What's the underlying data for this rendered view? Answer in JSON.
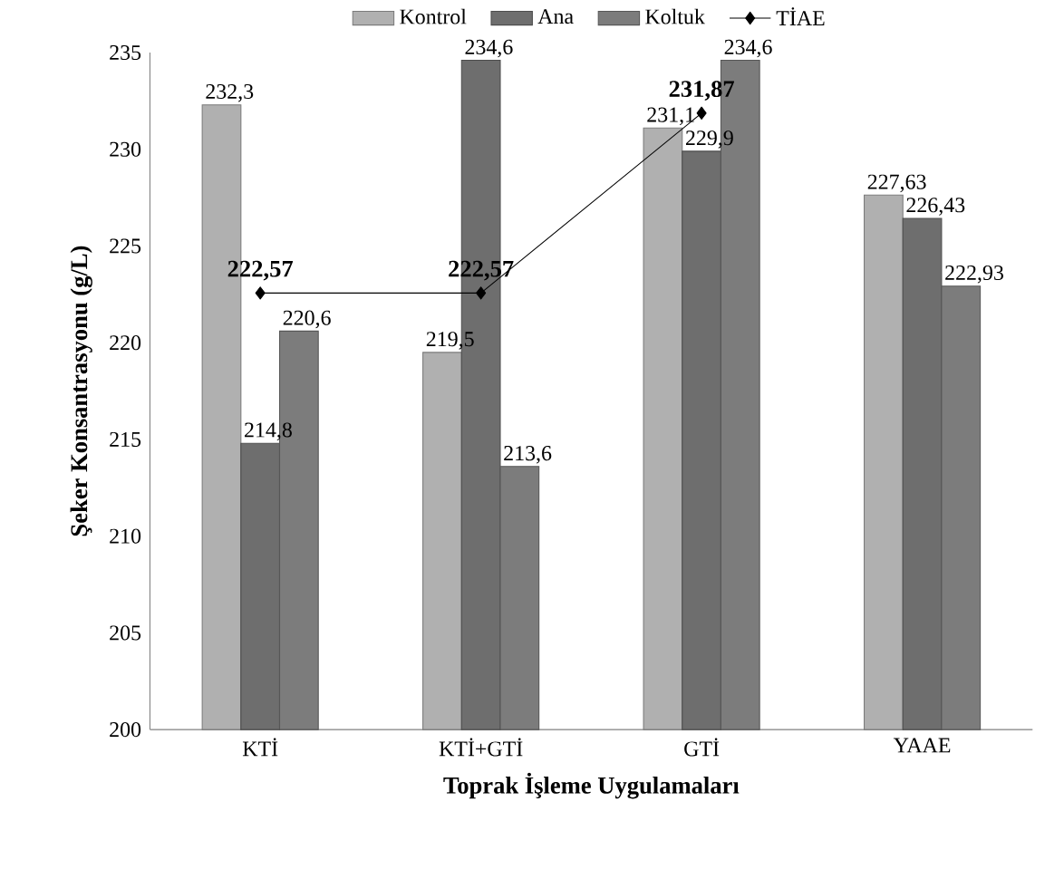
{
  "chart_data": {
    "type": "bar",
    "xlabel": "Toprak İşleme Uygulamaları",
    "ylabel": "Şeker Konsantrasyonu (g/L)",
    "categories": [
      "KTİ",
      "KTİ+GTİ",
      "GTİ",
      "YAAE"
    ],
    "series": [
      {
        "name": "Kontrol",
        "color": "#b0b0b0",
        "values": [
          232.3,
          219.5,
          231.1,
          227.63
        ],
        "value_labels": [
          "232,3",
          "219,5",
          "231,1",
          "227,63"
        ]
      },
      {
        "name": "Ana",
        "color": "#6e6e6e",
        "values": [
          214.8,
          234.6,
          229.9,
          226.43
        ],
        "value_labels": [
          "214,8",
          "234,6",
          "229,9",
          "226,43"
        ]
      },
      {
        "name": "Koltuk",
        "color": "#7c7c7c",
        "values": [
          220.6,
          213.6,
          234.6,
          222.93
        ],
        "value_labels": [
          "220,6",
          "213,6",
          "234,6",
          "222,93"
        ]
      },
      {
        "name": "TİAE",
        "type": "line",
        "color": "#000000",
        "marker": "diamond",
        "line_style": "solid",
        "values": [
          222.57,
          222.57,
          231.87,
          null
        ],
        "value_labels": [
          "222,57",
          "222,57",
          "231,87",
          null
        ]
      }
    ],
    "ylim": [
      200,
      235
    ],
    "yticks": [
      200,
      205,
      210,
      215,
      220,
      225,
      230,
      235
    ],
    "legend": "top"
  }
}
